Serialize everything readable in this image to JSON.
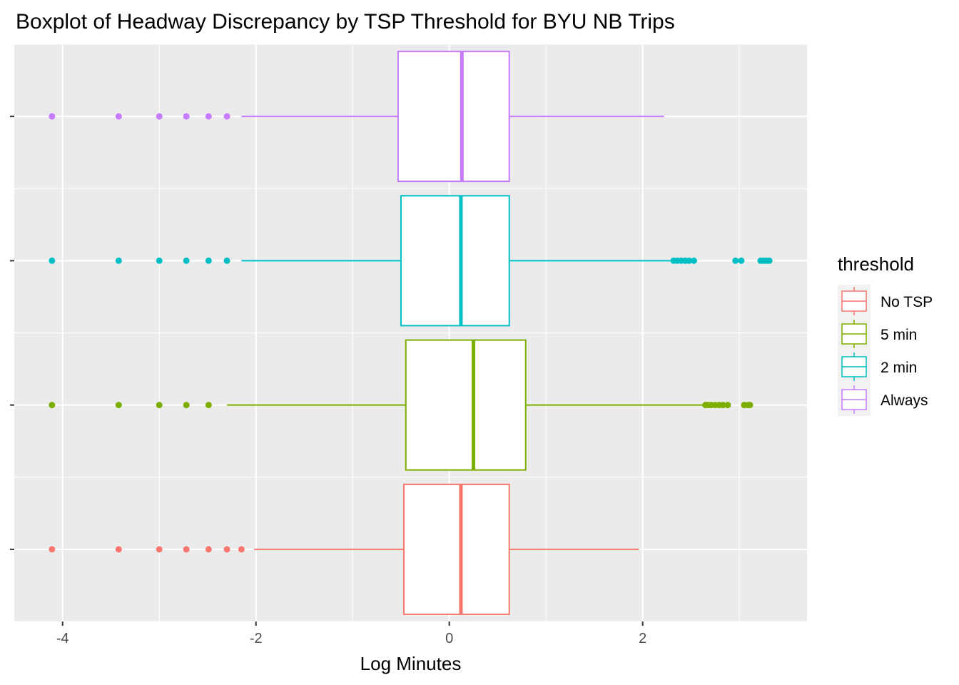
{
  "chart_data": {
    "type": "boxplot",
    "orientation": "horizontal",
    "title": "Boxplot of Headway Discrepancy by TSP Threshold for BYU NB Trips",
    "xlabel": "Log Minutes",
    "ylabel": "",
    "xlim": [
      -4.5,
      3.7
    ],
    "x_ticks": [
      -4,
      -2,
      0,
      2
    ],
    "x_tick_labels": [
      "-4",
      "-2",
      "0",
      "2"
    ],
    "grid": true,
    "legend": {
      "title": "threshold",
      "position": "right"
    },
    "series": [
      {
        "name": "No TSP",
        "color": "#F8766D",
        "whisker_low": -2.02,
        "q1": -0.47,
        "median": 0.12,
        "q3": 0.62,
        "whisker_high": 1.96,
        "outliers": [
          -4.11,
          -3.42,
          -3.0,
          -2.72,
          -2.49,
          -2.3,
          -2.15
        ]
      },
      {
        "name": "5 min",
        "color": "#7CAE00",
        "whisker_low": -2.3,
        "q1": -0.45,
        "median": 0.25,
        "q3": 0.79,
        "whisker_high": 2.62,
        "outliers": [
          -4.11,
          -3.42,
          -3.0,
          -2.72,
          -2.49,
          2.65,
          2.68,
          2.71,
          2.75,
          2.79,
          2.83,
          2.88,
          3.05,
          3.09,
          3.11
        ]
      },
      {
        "name": "2 min",
        "color": "#00BFC4",
        "whisker_low": -2.15,
        "q1": -0.5,
        "median": 0.12,
        "q3": 0.62,
        "whisker_high": 2.3,
        "outliers": [
          -4.11,
          -3.42,
          -3.0,
          -2.72,
          -2.49,
          -2.3,
          2.32,
          2.36,
          2.4,
          2.44,
          2.48,
          2.53,
          2.96,
          3.02,
          3.22,
          3.25,
          3.28,
          3.31
        ]
      },
      {
        "name": "Always",
        "color": "#C77CFF",
        "whisker_low": -2.15,
        "q1": -0.53,
        "median": 0.13,
        "q3": 0.62,
        "whisker_high": 2.22,
        "outliers": [
          -4.11,
          -3.42,
          -3.0,
          -2.72,
          -2.49,
          -2.3
        ]
      }
    ]
  }
}
